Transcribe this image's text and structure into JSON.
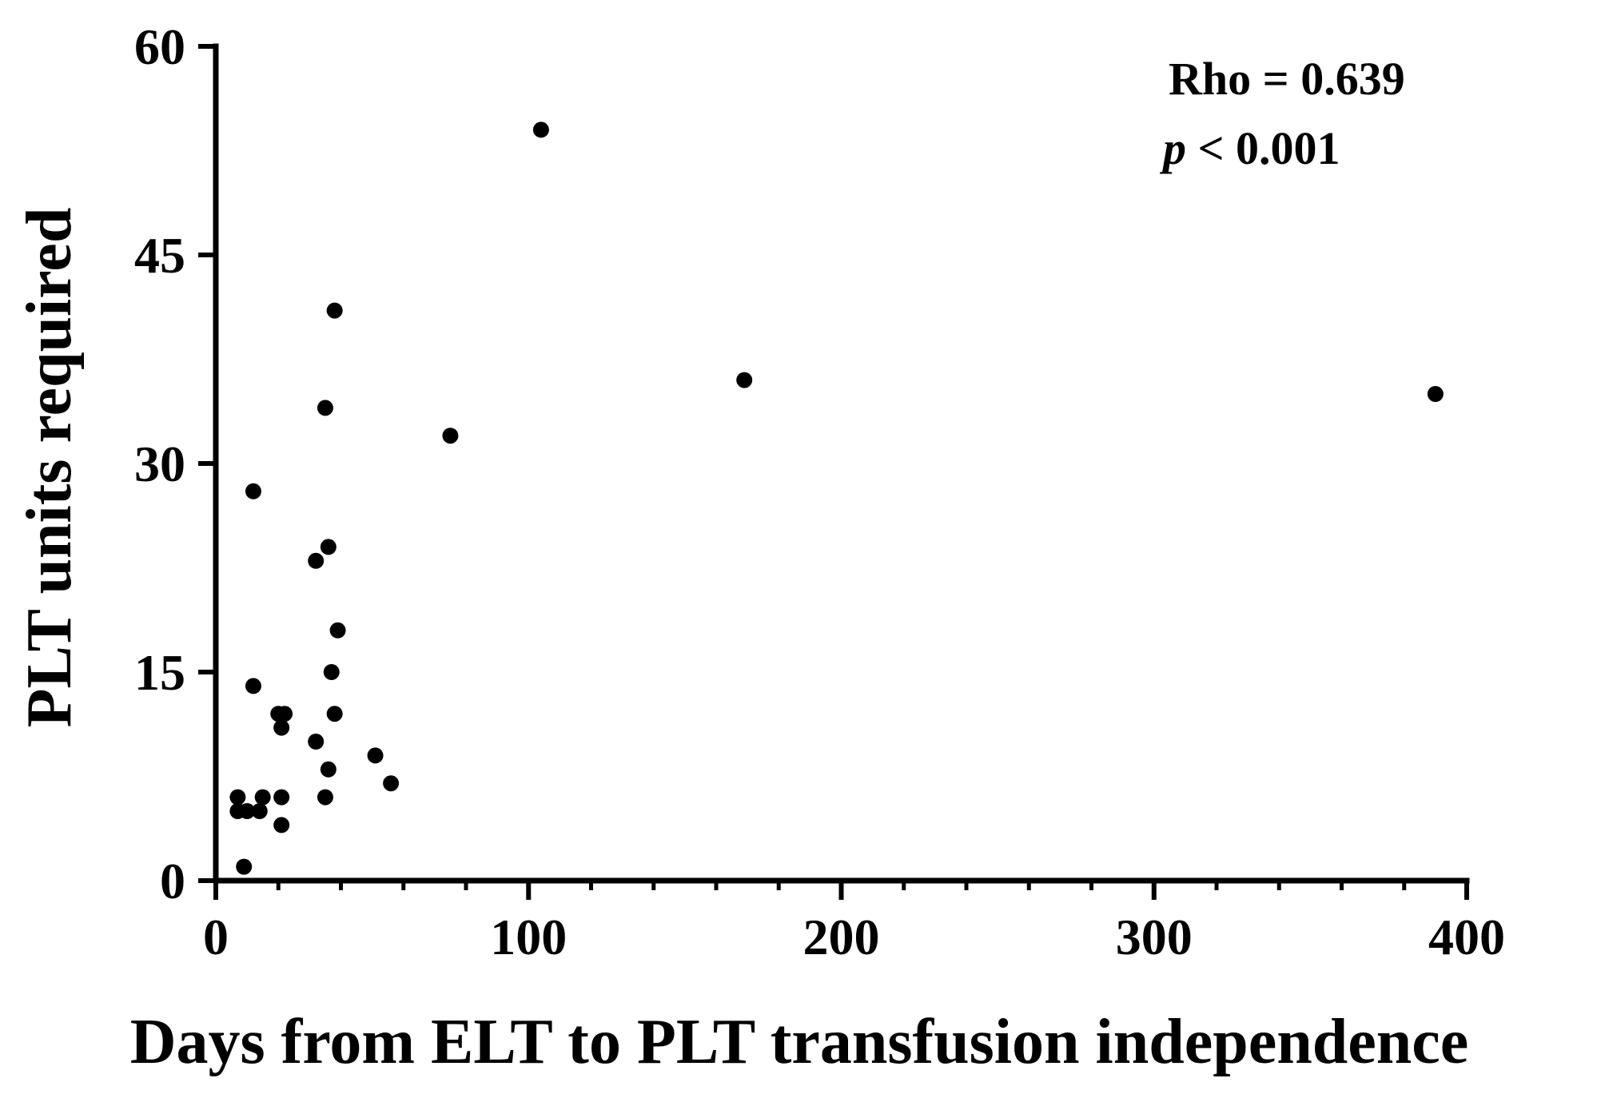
{
  "chart_data": {
    "type": "scatter",
    "title": "",
    "xlabel": "Days from ELT to PLT transfusion independence",
    "ylabel": "PLT units required",
    "xlim": [
      0,
      400
    ],
    "ylim": [
      0,
      60
    ],
    "x_ticks": [
      0,
      100,
      200,
      300,
      400
    ],
    "y_ticks": [
      0,
      15,
      30,
      45,
      60
    ],
    "x_minor_step": 20,
    "grid": false,
    "legend": "none",
    "marker_color": "#000000",
    "annotation": {
      "rho_text": "Rho = 0.639",
      "p_symbol": "p",
      "p_rest": " < 0.001"
    },
    "points": [
      {
        "x": 104,
        "y": 54
      },
      {
        "x": 169,
        "y": 36
      },
      {
        "x": 390,
        "y": 35
      },
      {
        "x": 38,
        "y": 41
      },
      {
        "x": 35,
        "y": 34
      },
      {
        "x": 75,
        "y": 32
      },
      {
        "x": 12,
        "y": 28
      },
      {
        "x": 36,
        "y": 24
      },
      {
        "x": 32,
        "y": 23
      },
      {
        "x": 39,
        "y": 18
      },
      {
        "x": 37,
        "y": 15
      },
      {
        "x": 12,
        "y": 14
      },
      {
        "x": 20,
        "y": 12
      },
      {
        "x": 22,
        "y": 12
      },
      {
        "x": 38,
        "y": 12
      },
      {
        "x": 21,
        "y": 11
      },
      {
        "x": 32,
        "y": 10
      },
      {
        "x": 51,
        "y": 9
      },
      {
        "x": 36,
        "y": 8
      },
      {
        "x": 56,
        "y": 7
      },
      {
        "x": 7,
        "y": 6
      },
      {
        "x": 15,
        "y": 6
      },
      {
        "x": 21,
        "y": 6
      },
      {
        "x": 35,
        "y": 6
      },
      {
        "x": 7,
        "y": 5
      },
      {
        "x": 10,
        "y": 5
      },
      {
        "x": 14,
        "y": 5
      },
      {
        "x": 21,
        "y": 4
      },
      {
        "x": 9,
        "y": 1
      }
    ]
  }
}
